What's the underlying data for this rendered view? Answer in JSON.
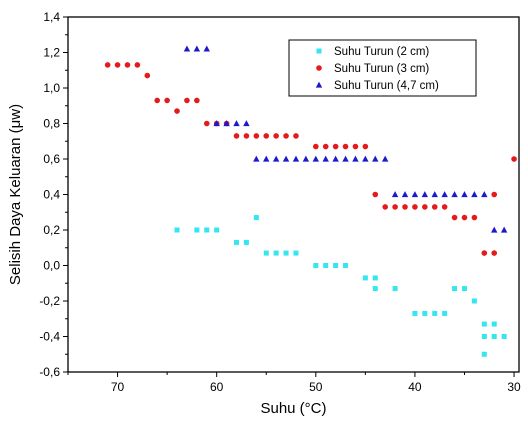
{
  "chart_data": {
    "type": "scatter",
    "title": "",
    "xlabel": "Suhu (°C)",
    "ylabel": "Selisih Daya Keluaran (μw)",
    "xlim": [
      75,
      29.5
    ],
    "ylim": [
      -0.6,
      1.4
    ],
    "x_reversed": true,
    "xticks": [
      70,
      60,
      50,
      40,
      30
    ],
    "yticks": [
      -0.6,
      -0.4,
      -0.2,
      0.0,
      0.2,
      0.4,
      0.6,
      0.8,
      1.0,
      1.2,
      1.4
    ],
    "xtick_labels": [
      "70",
      "60",
      "50",
      "40",
      "30"
    ],
    "ytick_labels": [
      "-0,6",
      "-0,4",
      "-0,2",
      "0,0",
      "0,2",
      "0,4",
      "0,6",
      "0,8",
      "1,0",
      "1,2",
      "1,4"
    ],
    "grid": false,
    "legend_position": "top-right",
    "series": [
      {
        "name": "Suhu Turun (2 cm)",
        "marker": "square",
        "color": "#33e6f0",
        "points": [
          [
            64,
            0.2
          ],
          [
            62,
            0.2
          ],
          [
            61,
            0.2
          ],
          [
            60,
            0.2
          ],
          [
            58,
            0.13
          ],
          [
            57,
            0.13
          ],
          [
            56,
            0.27
          ],
          [
            55,
            0.07
          ],
          [
            54,
            0.07
          ],
          [
            53,
            0.07
          ],
          [
            52,
            0.07
          ],
          [
            50,
            0.0
          ],
          [
            49,
            0.0
          ],
          [
            48,
            0.0
          ],
          [
            47,
            0.0
          ],
          [
            45,
            -0.07
          ],
          [
            44,
            -0.07
          ],
          [
            44,
            -0.13
          ],
          [
            42,
            -0.13
          ],
          [
            40,
            -0.27
          ],
          [
            39,
            -0.27
          ],
          [
            38,
            -0.27
          ],
          [
            37,
            -0.27
          ],
          [
            36,
            -0.13
          ],
          [
            35,
            -0.13
          ],
          [
            34,
            -0.2
          ],
          [
            33,
            -0.33
          ],
          [
            32,
            -0.33
          ],
          [
            33,
            -0.4
          ],
          [
            32,
            -0.4
          ],
          [
            31,
            -0.4
          ],
          [
            33,
            -0.5
          ]
        ]
      },
      {
        "name": "Suhu Turun (3 cm)",
        "marker": "circle",
        "color": "#e41a1c",
        "points": [
          [
            71,
            1.13
          ],
          [
            70,
            1.13
          ],
          [
            69,
            1.13
          ],
          [
            68,
            1.13
          ],
          [
            67,
            1.07
          ],
          [
            66,
            0.93
          ],
          [
            65,
            0.93
          ],
          [
            64,
            0.87
          ],
          [
            63,
            0.93
          ],
          [
            62,
            0.93
          ],
          [
            61,
            0.8
          ],
          [
            60,
            0.8
          ],
          [
            59,
            0.8
          ],
          [
            58,
            0.73
          ],
          [
            57,
            0.73
          ],
          [
            56,
            0.73
          ],
          [
            55,
            0.73
          ],
          [
            54,
            0.73
          ],
          [
            53,
            0.73
          ],
          [
            52,
            0.73
          ],
          [
            50,
            0.67
          ],
          [
            49,
            0.67
          ],
          [
            48,
            0.67
          ],
          [
            47,
            0.67
          ],
          [
            46,
            0.67
          ],
          [
            45,
            0.67
          ],
          [
            44,
            0.4
          ],
          [
            43,
            0.33
          ],
          [
            42,
            0.33
          ],
          [
            41,
            0.33
          ],
          [
            40,
            0.33
          ],
          [
            39,
            0.33
          ],
          [
            38,
            0.33
          ],
          [
            37,
            0.33
          ],
          [
            36,
            0.27
          ],
          [
            35,
            0.27
          ],
          [
            34,
            0.27
          ],
          [
            33,
            0.07
          ],
          [
            32,
            0.07
          ],
          [
            32,
            0.4
          ],
          [
            30,
            0.6
          ]
        ]
      },
      {
        "name": "Suhu Turun (4,7 cm)",
        "marker": "triangle",
        "color": "#1a1acc",
        "points": [
          [
            63,
            1.22
          ],
          [
            62,
            1.22
          ],
          [
            61,
            1.22
          ],
          [
            60,
            0.8
          ],
          [
            59,
            0.8
          ],
          [
            58,
            0.8
          ],
          [
            57,
            0.8
          ],
          [
            56,
            0.6
          ],
          [
            55,
            0.6
          ],
          [
            54,
            0.6
          ],
          [
            53,
            0.6
          ],
          [
            52,
            0.6
          ],
          [
            51,
            0.6
          ],
          [
            50,
            0.6
          ],
          [
            49,
            0.6
          ],
          [
            48,
            0.6
          ],
          [
            47,
            0.6
          ],
          [
            46,
            0.6
          ],
          [
            45,
            0.6
          ],
          [
            44,
            0.6
          ],
          [
            43,
            0.6
          ],
          [
            42,
            0.4
          ],
          [
            41,
            0.4
          ],
          [
            40,
            0.4
          ],
          [
            39,
            0.4
          ],
          [
            38,
            0.4
          ],
          [
            37,
            0.4
          ],
          [
            36,
            0.4
          ],
          [
            35,
            0.4
          ],
          [
            34,
            0.4
          ],
          [
            33,
            0.4
          ],
          [
            32,
            0.2
          ],
          [
            31,
            0.2
          ]
        ]
      }
    ]
  }
}
